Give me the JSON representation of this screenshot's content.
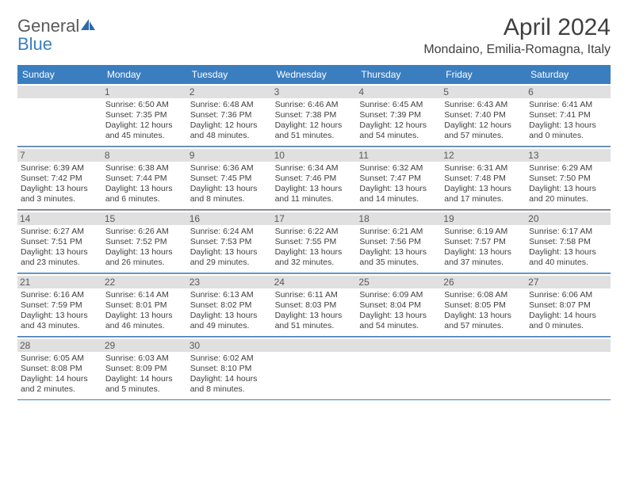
{
  "logo": {
    "word1": "General",
    "word2": "Blue"
  },
  "title": "April 2024",
  "location": "Mondaino, Emilia-Romagna, Italy",
  "colors": {
    "header_bg": "#3b7ec0",
    "header_fg": "#ffffff",
    "daynum_bg": "#e0e0e0",
    "text": "#404040",
    "rule": "#3b7ec0",
    "cell_rule": "#a8a8a8"
  },
  "day_names": [
    "Sunday",
    "Monday",
    "Tuesday",
    "Wednesday",
    "Thursday",
    "Friday",
    "Saturday"
  ],
  "weeks": [
    [
      {
        "num": "",
        "lines": []
      },
      {
        "num": "1",
        "lines": [
          "Sunrise: 6:50 AM",
          "Sunset: 7:35 PM",
          "Daylight: 12 hours and 45 minutes."
        ]
      },
      {
        "num": "2",
        "lines": [
          "Sunrise: 6:48 AM",
          "Sunset: 7:36 PM",
          "Daylight: 12 hours and 48 minutes."
        ]
      },
      {
        "num": "3",
        "lines": [
          "Sunrise: 6:46 AM",
          "Sunset: 7:38 PM",
          "Daylight: 12 hours and 51 minutes."
        ]
      },
      {
        "num": "4",
        "lines": [
          "Sunrise: 6:45 AM",
          "Sunset: 7:39 PM",
          "Daylight: 12 hours and 54 minutes."
        ]
      },
      {
        "num": "5",
        "lines": [
          "Sunrise: 6:43 AM",
          "Sunset: 7:40 PM",
          "Daylight: 12 hours and 57 minutes."
        ]
      },
      {
        "num": "6",
        "lines": [
          "Sunrise: 6:41 AM",
          "Sunset: 7:41 PM",
          "Daylight: 13 hours and 0 minutes."
        ]
      }
    ],
    [
      {
        "num": "7",
        "lines": [
          "Sunrise: 6:39 AM",
          "Sunset: 7:42 PM",
          "Daylight: 13 hours and 3 minutes."
        ]
      },
      {
        "num": "8",
        "lines": [
          "Sunrise: 6:38 AM",
          "Sunset: 7:44 PM",
          "Daylight: 13 hours and 6 minutes."
        ]
      },
      {
        "num": "9",
        "lines": [
          "Sunrise: 6:36 AM",
          "Sunset: 7:45 PM",
          "Daylight: 13 hours and 8 minutes."
        ]
      },
      {
        "num": "10",
        "lines": [
          "Sunrise: 6:34 AM",
          "Sunset: 7:46 PM",
          "Daylight: 13 hours and 11 minutes."
        ]
      },
      {
        "num": "11",
        "lines": [
          "Sunrise: 6:32 AM",
          "Sunset: 7:47 PM",
          "Daylight: 13 hours and 14 minutes."
        ]
      },
      {
        "num": "12",
        "lines": [
          "Sunrise: 6:31 AM",
          "Sunset: 7:48 PM",
          "Daylight: 13 hours and 17 minutes."
        ]
      },
      {
        "num": "13",
        "lines": [
          "Sunrise: 6:29 AM",
          "Sunset: 7:50 PM",
          "Daylight: 13 hours and 20 minutes."
        ]
      }
    ],
    [
      {
        "num": "14",
        "lines": [
          "Sunrise: 6:27 AM",
          "Sunset: 7:51 PM",
          "Daylight: 13 hours and 23 minutes."
        ]
      },
      {
        "num": "15",
        "lines": [
          "Sunrise: 6:26 AM",
          "Sunset: 7:52 PM",
          "Daylight: 13 hours and 26 minutes."
        ]
      },
      {
        "num": "16",
        "lines": [
          "Sunrise: 6:24 AM",
          "Sunset: 7:53 PM",
          "Daylight: 13 hours and 29 minutes."
        ]
      },
      {
        "num": "17",
        "lines": [
          "Sunrise: 6:22 AM",
          "Sunset: 7:55 PM",
          "Daylight: 13 hours and 32 minutes."
        ]
      },
      {
        "num": "18",
        "lines": [
          "Sunrise: 6:21 AM",
          "Sunset: 7:56 PM",
          "Daylight: 13 hours and 35 minutes."
        ]
      },
      {
        "num": "19",
        "lines": [
          "Sunrise: 6:19 AM",
          "Sunset: 7:57 PM",
          "Daylight: 13 hours and 37 minutes."
        ]
      },
      {
        "num": "20",
        "lines": [
          "Sunrise: 6:17 AM",
          "Sunset: 7:58 PM",
          "Daylight: 13 hours and 40 minutes."
        ]
      }
    ],
    [
      {
        "num": "21",
        "lines": [
          "Sunrise: 6:16 AM",
          "Sunset: 7:59 PM",
          "Daylight: 13 hours and 43 minutes."
        ]
      },
      {
        "num": "22",
        "lines": [
          "Sunrise: 6:14 AM",
          "Sunset: 8:01 PM",
          "Daylight: 13 hours and 46 minutes."
        ]
      },
      {
        "num": "23",
        "lines": [
          "Sunrise: 6:13 AM",
          "Sunset: 8:02 PM",
          "Daylight: 13 hours and 49 minutes."
        ]
      },
      {
        "num": "24",
        "lines": [
          "Sunrise: 6:11 AM",
          "Sunset: 8:03 PM",
          "Daylight: 13 hours and 51 minutes."
        ]
      },
      {
        "num": "25",
        "lines": [
          "Sunrise: 6:09 AM",
          "Sunset: 8:04 PM",
          "Daylight: 13 hours and 54 minutes."
        ]
      },
      {
        "num": "26",
        "lines": [
          "Sunrise: 6:08 AM",
          "Sunset: 8:05 PM",
          "Daylight: 13 hours and 57 minutes."
        ]
      },
      {
        "num": "27",
        "lines": [
          "Sunrise: 6:06 AM",
          "Sunset: 8:07 PM",
          "Daylight: 14 hours and 0 minutes."
        ]
      }
    ],
    [
      {
        "num": "28",
        "lines": [
          "Sunrise: 6:05 AM",
          "Sunset: 8:08 PM",
          "Daylight: 14 hours and 2 minutes."
        ]
      },
      {
        "num": "29",
        "lines": [
          "Sunrise: 6:03 AM",
          "Sunset: 8:09 PM",
          "Daylight: 14 hours and 5 minutes."
        ]
      },
      {
        "num": "30",
        "lines": [
          "Sunrise: 6:02 AM",
          "Sunset: 8:10 PM",
          "Daylight: 14 hours and 8 minutes."
        ]
      },
      {
        "num": "",
        "lines": []
      },
      {
        "num": "",
        "lines": []
      },
      {
        "num": "",
        "lines": []
      },
      {
        "num": "",
        "lines": []
      }
    ]
  ]
}
